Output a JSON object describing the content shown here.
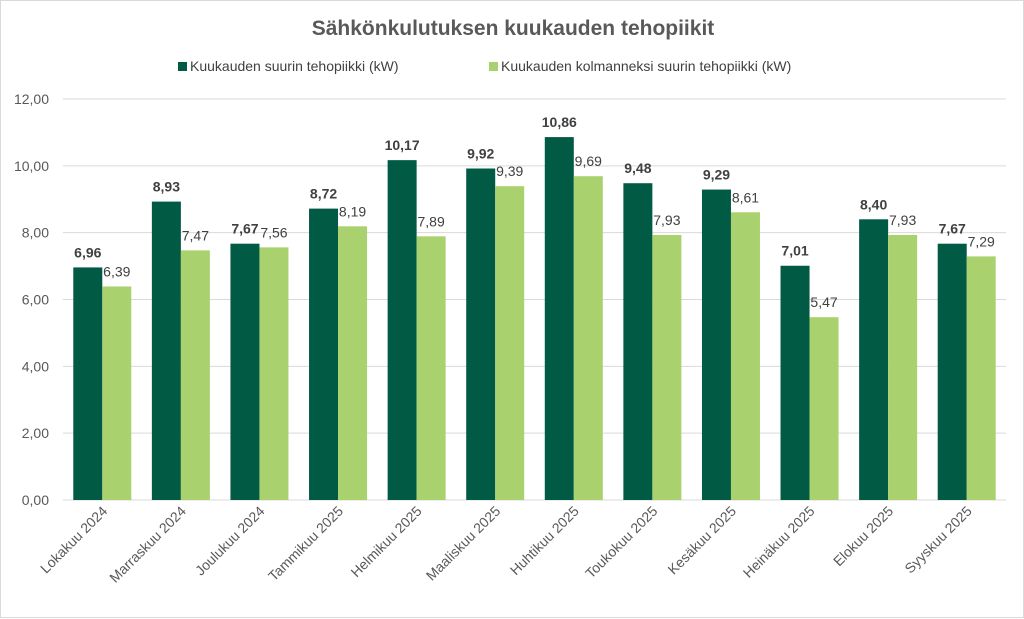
{
  "chart_data": {
    "type": "bar",
    "title": "Sähkönkulutuksen kuukauden tehopiikit",
    "categories": [
      "Lokakuu 2024",
      "Marraskuu 2024",
      "Joulukuu 2024",
      "Tammikuu 2025",
      "Helmikuu 2025",
      "Maaliskuu 2025",
      "Huhtikuu 2025",
      "Toukokuu 2025",
      "Kesäkuu 2025",
      "Heinäkuu 2025",
      "Elokuu 2025",
      "Syyskuu 2025"
    ],
    "series": [
      {
        "name": "Kuukauden suurin tehopiikki (kW)",
        "color": "#005a44",
        "values": [
          6.96,
          8.93,
          7.67,
          8.72,
          10.17,
          9.92,
          10.86,
          9.48,
          9.29,
          7.01,
          8.4,
          7.67
        ],
        "labels": [
          "6,96",
          "8,93",
          "7,67",
          "8,72",
          "10,17",
          "9,92",
          "10,86",
          "9,48",
          "9,29",
          "7,01",
          "8,40",
          "7,67"
        ]
      },
      {
        "name": "Kuukauden kolmanneksi suurin tehopiikki (kW)",
        "color": "#a9d16e",
        "values": [
          6.39,
          7.47,
          7.56,
          8.19,
          7.89,
          9.39,
          9.69,
          7.93,
          8.61,
          5.47,
          7.93,
          7.29
        ],
        "labels": [
          "6,39",
          "7,47",
          "7,56",
          "8,19",
          "7,89",
          "9,39",
          "9,69",
          "7,93",
          "8,61",
          "5,47",
          "7,93",
          "7,29"
        ]
      }
    ],
    "yticks": [
      0,
      2,
      4,
      6,
      8,
      10,
      12
    ],
    "ytick_labels": [
      "0,00",
      "2,00",
      "4,00",
      "6,00",
      "8,00",
      "10,00",
      "12,00"
    ],
    "ylim": [
      0,
      12
    ],
    "xlabel": "",
    "ylabel": "",
    "legend": "top",
    "grid": true
  }
}
